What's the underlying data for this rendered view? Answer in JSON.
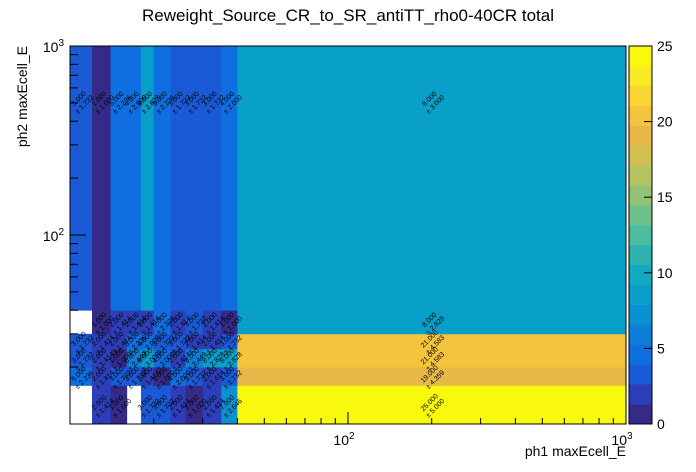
{
  "chart_data": {
    "type": "heatmap",
    "title": "Reweight_Source_CR_to_SR_antiTT_rho0-40CR total",
    "xlabel": "ph1 maxEcell_E",
    "ylabel": "ph2 maxEcell_E",
    "xscale": "log",
    "yscale": "log",
    "xlim": [
      10,
      1000
    ],
    "ylim": [
      10,
      1000
    ],
    "x_ticks": [
      {
        "v": 100,
        "base": "10",
        "exp": "2"
      },
      {
        "v": 1000,
        "base": "10",
        "exp": "3"
      }
    ],
    "y_ticks": [
      {
        "v": 100,
        "base": "10",
        "exp": "2"
      },
      {
        "v": 1000,
        "base": "10",
        "exp": "3"
      }
    ],
    "zlim": [
      0,
      25
    ],
    "z_ticks": [
      "0",
      "5",
      "10",
      "15",
      "20",
      "25"
    ],
    "x_edges": [
      10,
      12,
      14,
      16,
      18,
      20,
      23,
      26,
      30,
      35,
      40,
      1000
    ],
    "y_edges": [
      10,
      16,
      20,
      25,
      30,
      40,
      1000
    ],
    "cells": [
      {
        "ix": 0,
        "iy": 0,
        "v": 0,
        "label": ""
      },
      {
        "ix": 1,
        "iy": 0,
        "v": 2,
        "label": "2.000\n± 1.414"
      },
      {
        "ix": 2,
        "iy": 0,
        "v": 1,
        "label": "1.000\n± 1.000"
      },
      {
        "ix": 3,
        "iy": 0,
        "v": 0,
        "label": ""
      },
      {
        "ix": 4,
        "iy": 0,
        "v": 3,
        "label": "3.000\n± 1.732"
      },
      {
        "ix": 5,
        "iy": 0,
        "v": 3,
        "label": "3.000\n± 1.732"
      },
      {
        "ix": 6,
        "iy": 0,
        "v": 2,
        "label": "2.000\n± 1.414"
      },
      {
        "ix": 7,
        "iy": 0,
        "v": 1,
        "label": "1.000\n± 1.000"
      },
      {
        "ix": 8,
        "iy": 0,
        "v": 2,
        "label": "2.000\n± 1.414"
      },
      {
        "ix": 9,
        "iy": 0,
        "v": 7,
        "label": "7.000\n± 2.646"
      },
      {
        "ix": 10,
        "iy": 0,
        "v": 25,
        "label": "25.000\n± 5.000"
      },
      {
        "ix": 0,
        "iy": 1,
        "v": 5,
        "label": "5.000\n± 2.236"
      },
      {
        "ix": 1,
        "iy": 1,
        "v": 2,
        "label": "2.000\n± 1.414"
      },
      {
        "ix": 2,
        "iy": 1,
        "v": 3,
        "label": "3.000\n± 1.732"
      },
      {
        "ix": 3,
        "iy": 1,
        "v": 3,
        "label": "3.000\n± 1.732"
      },
      {
        "ix": 4,
        "iy": 1,
        "v": 2,
        "label": "2.000\n± 1.414"
      },
      {
        "ix": 5,
        "iy": 1,
        "v": 1,
        "label": "1.000\n± 1.000"
      },
      {
        "ix": 6,
        "iy": 1,
        "v": 4,
        "label": "4.000\n± 2.000"
      },
      {
        "ix": 7,
        "iy": 1,
        "v": 3,
        "label": "3.000\n± 1.732"
      },
      {
        "ix": 8,
        "iy": 1,
        "v": 2,
        "label": "2.000\n± 1.414"
      },
      {
        "ix": 9,
        "iy": 1,
        "v": 3,
        "label": "3.000\n± 1.732"
      },
      {
        "ix": 10,
        "iy": 1,
        "v": 19,
        "label": "19.000\n± 4.359"
      },
      {
        "ix": 0,
        "iy": 2,
        "v": 3,
        "label": "3.000\n± 1.732"
      },
      {
        "ix": 1,
        "iy": 2,
        "v": 2,
        "label": "2.000\n± 1.414"
      },
      {
        "ix": 2,
        "iy": 2,
        "v": 1,
        "label": "1.000\n± 1.000"
      },
      {
        "ix": 3,
        "iy": 2,
        "v": 6,
        "label": "6.000\n± 2.449"
      },
      {
        "ix": 4,
        "iy": 2,
        "v": 9,
        "label": "9.000\n± 3.000"
      },
      {
        "ix": 5,
        "iy": 2,
        "v": 4,
        "label": "4.000\n± 2.000"
      },
      {
        "ix": 6,
        "iy": 2,
        "v": 2,
        "label": "2.000\n± 1.414"
      },
      {
        "ix": 7,
        "iy": 2,
        "v": 6,
        "label": "6.000\n± 2.449"
      },
      {
        "ix": 8,
        "iy": 2,
        "v": 8,
        "label": "8.000\n± 2.828"
      },
      {
        "ix": 9,
        "iy": 2,
        "v": 8,
        "label": "8.000\n± 2.828"
      },
      {
        "ix": 10,
        "iy": 2,
        "v": 21,
        "label": "21.000\n± 4.583"
      },
      {
        "ix": 0,
        "iy": 3,
        "v": 3,
        "label": "3.000\n± 1.732"
      },
      {
        "ix": 1,
        "iy": 3,
        "v": 2,
        "label": "2.000\n± 1.414"
      },
      {
        "ix": 2,
        "iy": 3,
        "v": 2,
        "label": "2.000\n± 1.414"
      },
      {
        "ix": 3,
        "iy": 3,
        "v": 5,
        "label": "5.000\n± 2.236"
      },
      {
        "ix": 4,
        "iy": 3,
        "v": 4,
        "label": "4.000\n± 2.000"
      },
      {
        "ix": 5,
        "iy": 3,
        "v": 3,
        "label": "3.000\n± 1.732"
      },
      {
        "ix": 6,
        "iy": 3,
        "v": 3,
        "label": "3.000\n± 1.732"
      },
      {
        "ix": 7,
        "iy": 3,
        "v": 2,
        "label": "2.000\n± 1.414"
      },
      {
        "ix": 8,
        "iy": 3,
        "v": 2,
        "label": "2.000\n± 1.414"
      },
      {
        "ix": 9,
        "iy": 3,
        "v": 3,
        "label": "3.000\n± 1.732"
      },
      {
        "ix": 10,
        "iy": 3,
        "v": 21,
        "label": "21.000\n± 4.583"
      },
      {
        "ix": 0,
        "iy": 4,
        "v": 0,
        "label": ""
      },
      {
        "ix": 1,
        "iy": 4,
        "v": 1,
        "label": "1.000\n± 1.000"
      },
      {
        "ix": 2,
        "iy": 4,
        "v": 2,
        "label": "2.000\n± 1.414"
      },
      {
        "ix": 3,
        "iy": 4,
        "v": 2,
        "label": "2.000\n± 1.414"
      },
      {
        "ix": 4,
        "iy": 4,
        "v": 2,
        "label": "2.000\n± 1.414"
      },
      {
        "ix": 5,
        "iy": 4,
        "v": 5,
        "label": "5.000\n± 2.236"
      },
      {
        "ix": 6,
        "iy": 4,
        "v": 2,
        "label": "2.000\n± 1.414"
      },
      {
        "ix": 7,
        "iy": 4,
        "v": 3,
        "label": "3.000\n± 1.732"
      },
      {
        "ix": 8,
        "iy": 4,
        "v": 2,
        "label": "2.000\n± 1.414"
      },
      {
        "ix": 9,
        "iy": 4,
        "v": 1,
        "label": "1.000\n± 1.000"
      },
      {
        "ix": 10,
        "iy": 4,
        "v": 8,
        "label": "8.000\n± 2.828"
      },
      {
        "ix": 0,
        "iy": 5,
        "v": 3,
        "label": "3.000\n± 1.732"
      },
      {
        "ix": 1,
        "iy": 5,
        "v": 1,
        "label": "1.000\n± 1.000"
      },
      {
        "ix": 2,
        "iy": 5,
        "v": 5,
        "label": "5.000\n± 2.236"
      },
      {
        "ix": 3,
        "iy": 5,
        "v": 4,
        "label": "4.000\n± 2.000"
      },
      {
        "ix": 4,
        "iy": 5,
        "v": 8,
        "label": "8.000\n± 2.828"
      },
      {
        "ix": 5,
        "iy": 5,
        "v": 5,
        "label": "5.000\n± 2.236"
      },
      {
        "ix": 6,
        "iy": 5,
        "v": 3,
        "label": "3.000\n± 1.732"
      },
      {
        "ix": 7,
        "iy": 5,
        "v": 3,
        "label": "3.000\n± 1.732"
      },
      {
        "ix": 8,
        "iy": 5,
        "v": 3,
        "label": "3.000\n± 1.732"
      },
      {
        "ix": 9,
        "iy": 5,
        "v": 4,
        "label": "4.000\n± 2.000"
      },
      {
        "ix": 10,
        "iy": 5,
        "v": 9,
        "label": "9.000\n± 3.000"
      }
    ],
    "palette": [
      "#352a87",
      "#2c3fb8",
      "#1a5ad6",
      "#0f6ee0",
      "#0d7fd8",
      "#0b90d0",
      "#089fc8",
      "#11aabf",
      "#2cb3b0",
      "#4bbca0",
      "#6ec18c",
      "#92c375",
      "#b4c461",
      "#d2bf52",
      "#e8b948",
      "#f5c43d",
      "#f9d633",
      "#f9ea25",
      "#f9f90e"
    ],
    "grid": false,
    "legend": "colorbar-right"
  }
}
